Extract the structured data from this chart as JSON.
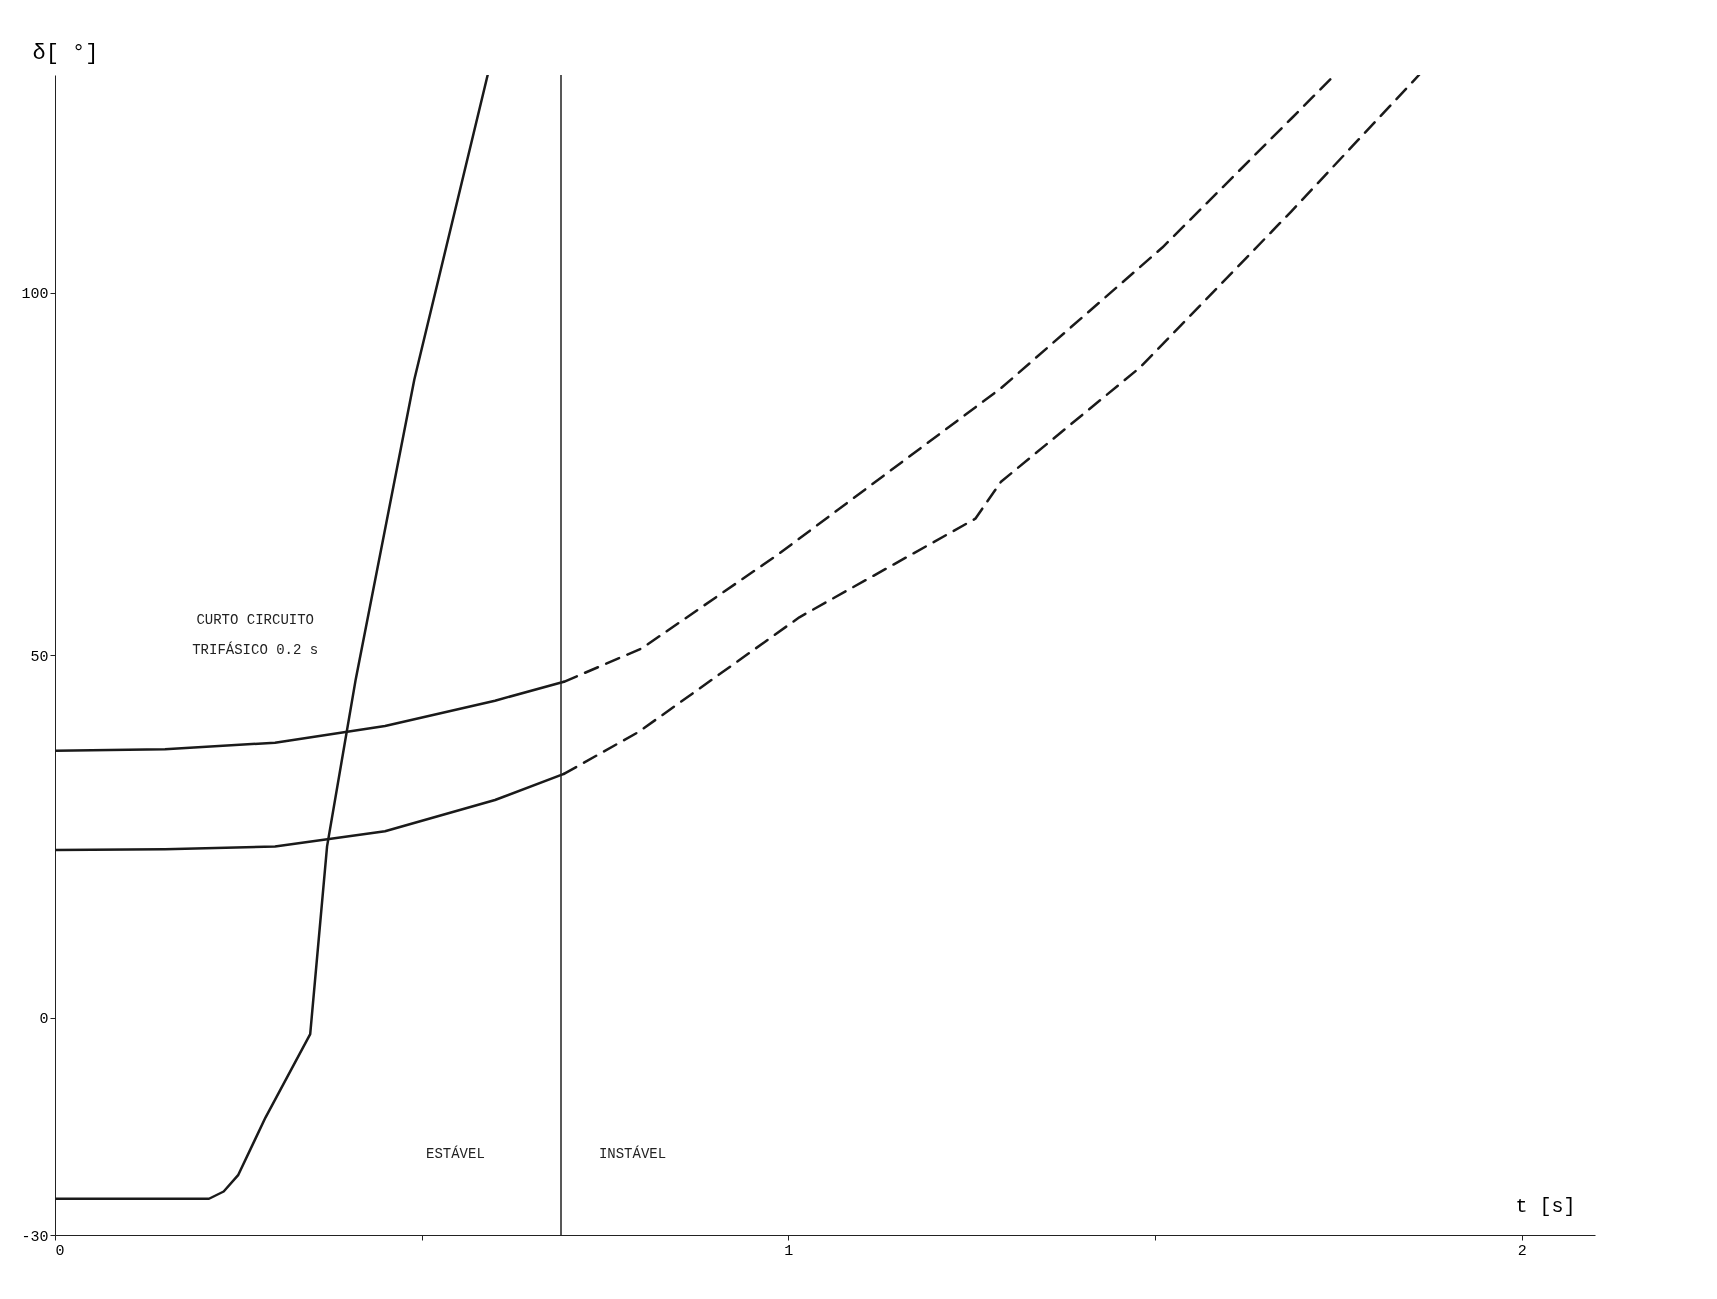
{
  "chart_data": {
    "type": "line",
    "xlabel": "t [s]",
    "ylabel": "δ[ °]",
    "xlim": [
      0,
      2.1
    ],
    "ylim": [
      -30,
      130
    ],
    "xticks": [
      0,
      {
        "value": 0.5,
        "label": null
      },
      1,
      {
        "value": 1.5,
        "label": null
      },
      2
    ],
    "yticks": [
      -30,
      0,
      50,
      100
    ],
    "grid": false,
    "marker": "none",
    "series": [
      {
        "color": "#1a1a1a",
        "line_style": "solid",
        "x": [
          0,
          0.21,
          0.23,
          0.25,
          0.287,
          0.348,
          0.371,
          0.41,
          0.49,
          0.59
        ],
        "values": [
          -25,
          -25,
          -24,
          -21.7,
          -13.8,
          -2.3,
          23.6,
          46.6,
          88,
          130
        ]
      },
      {
        "color": "#1a1a1a",
        "line_style": "solid",
        "x": [
          0,
          0.15,
          0.3,
          0.45,
          0.6,
          0.694
        ],
        "values": [
          36.8,
          37,
          37.9,
          40.2,
          43.7,
          46.3
        ]
      },
      {
        "color": "#1a1a1a",
        "line_style": "solid",
        "x": [
          0,
          0.15,
          0.3,
          0.45,
          0.6,
          0.694
        ],
        "values": [
          23.1,
          23.2,
          23.6,
          25.7,
          30,
          33.6
        ]
      },
      {
        "color": "#1a1a1a",
        "line_style": "dashed",
        "x": [
          0.694,
          0.8,
          0.985,
          1.29,
          1.51,
          1.686,
          1.745
        ],
        "values": [
          46.3,
          50.9,
          63.8,
          86.8,
          106.2,
          124,
          130
        ]
      },
      {
        "color": "#1a1a1a",
        "line_style": "dashed",
        "x": [
          0.694,
          0.796,
          1.015,
          1.255,
          1.29,
          1.48,
          1.686,
          1.86
        ],
        "values": [
          33.6,
          39.4,
          55.2,
          68.8,
          73.9,
          89.7,
          111.2,
          130
        ]
      }
    ],
    "ref_lines": [
      {
        "axis": "x",
        "value": 0.69,
        "label": null
      }
    ],
    "annotations": [
      "ESTÁVEL",
      "INSTÁVEL",
      "CURTO CIRCUITO\nTRIFÁSICO 0.2 s"
    ]
  }
}
